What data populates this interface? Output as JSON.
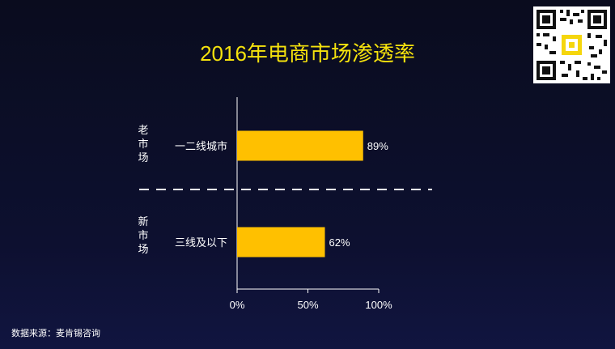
{
  "chart_data": {
    "type": "bar",
    "orientation": "horizontal",
    "title": "2016年电商市场渗透率",
    "categories": [
      "一二线城市",
      "三线及以下"
    ],
    "values": [
      89,
      62
    ],
    "value_labels": [
      "89%",
      "62%"
    ],
    "xlim": [
      0,
      100
    ],
    "x_ticks": [
      {
        "value": 0,
        "label": "0%"
      },
      {
        "value": 50,
        "label": "50%"
      },
      {
        "value": 100,
        "label": "100%"
      }
    ],
    "groups": [
      {
        "label": [
          "老",
          "市",
          "场"
        ],
        "category": "一二线城市"
      },
      {
        "label": [
          "新",
          "市",
          "场"
        ],
        "category": "三线及以下"
      }
    ],
    "bar_color": "#ffc000",
    "title_color": "#f5e20d",
    "grid": false
  },
  "source": "数据来源：麦肯锡咨询",
  "qr_code_icon": "qr-code-icon"
}
